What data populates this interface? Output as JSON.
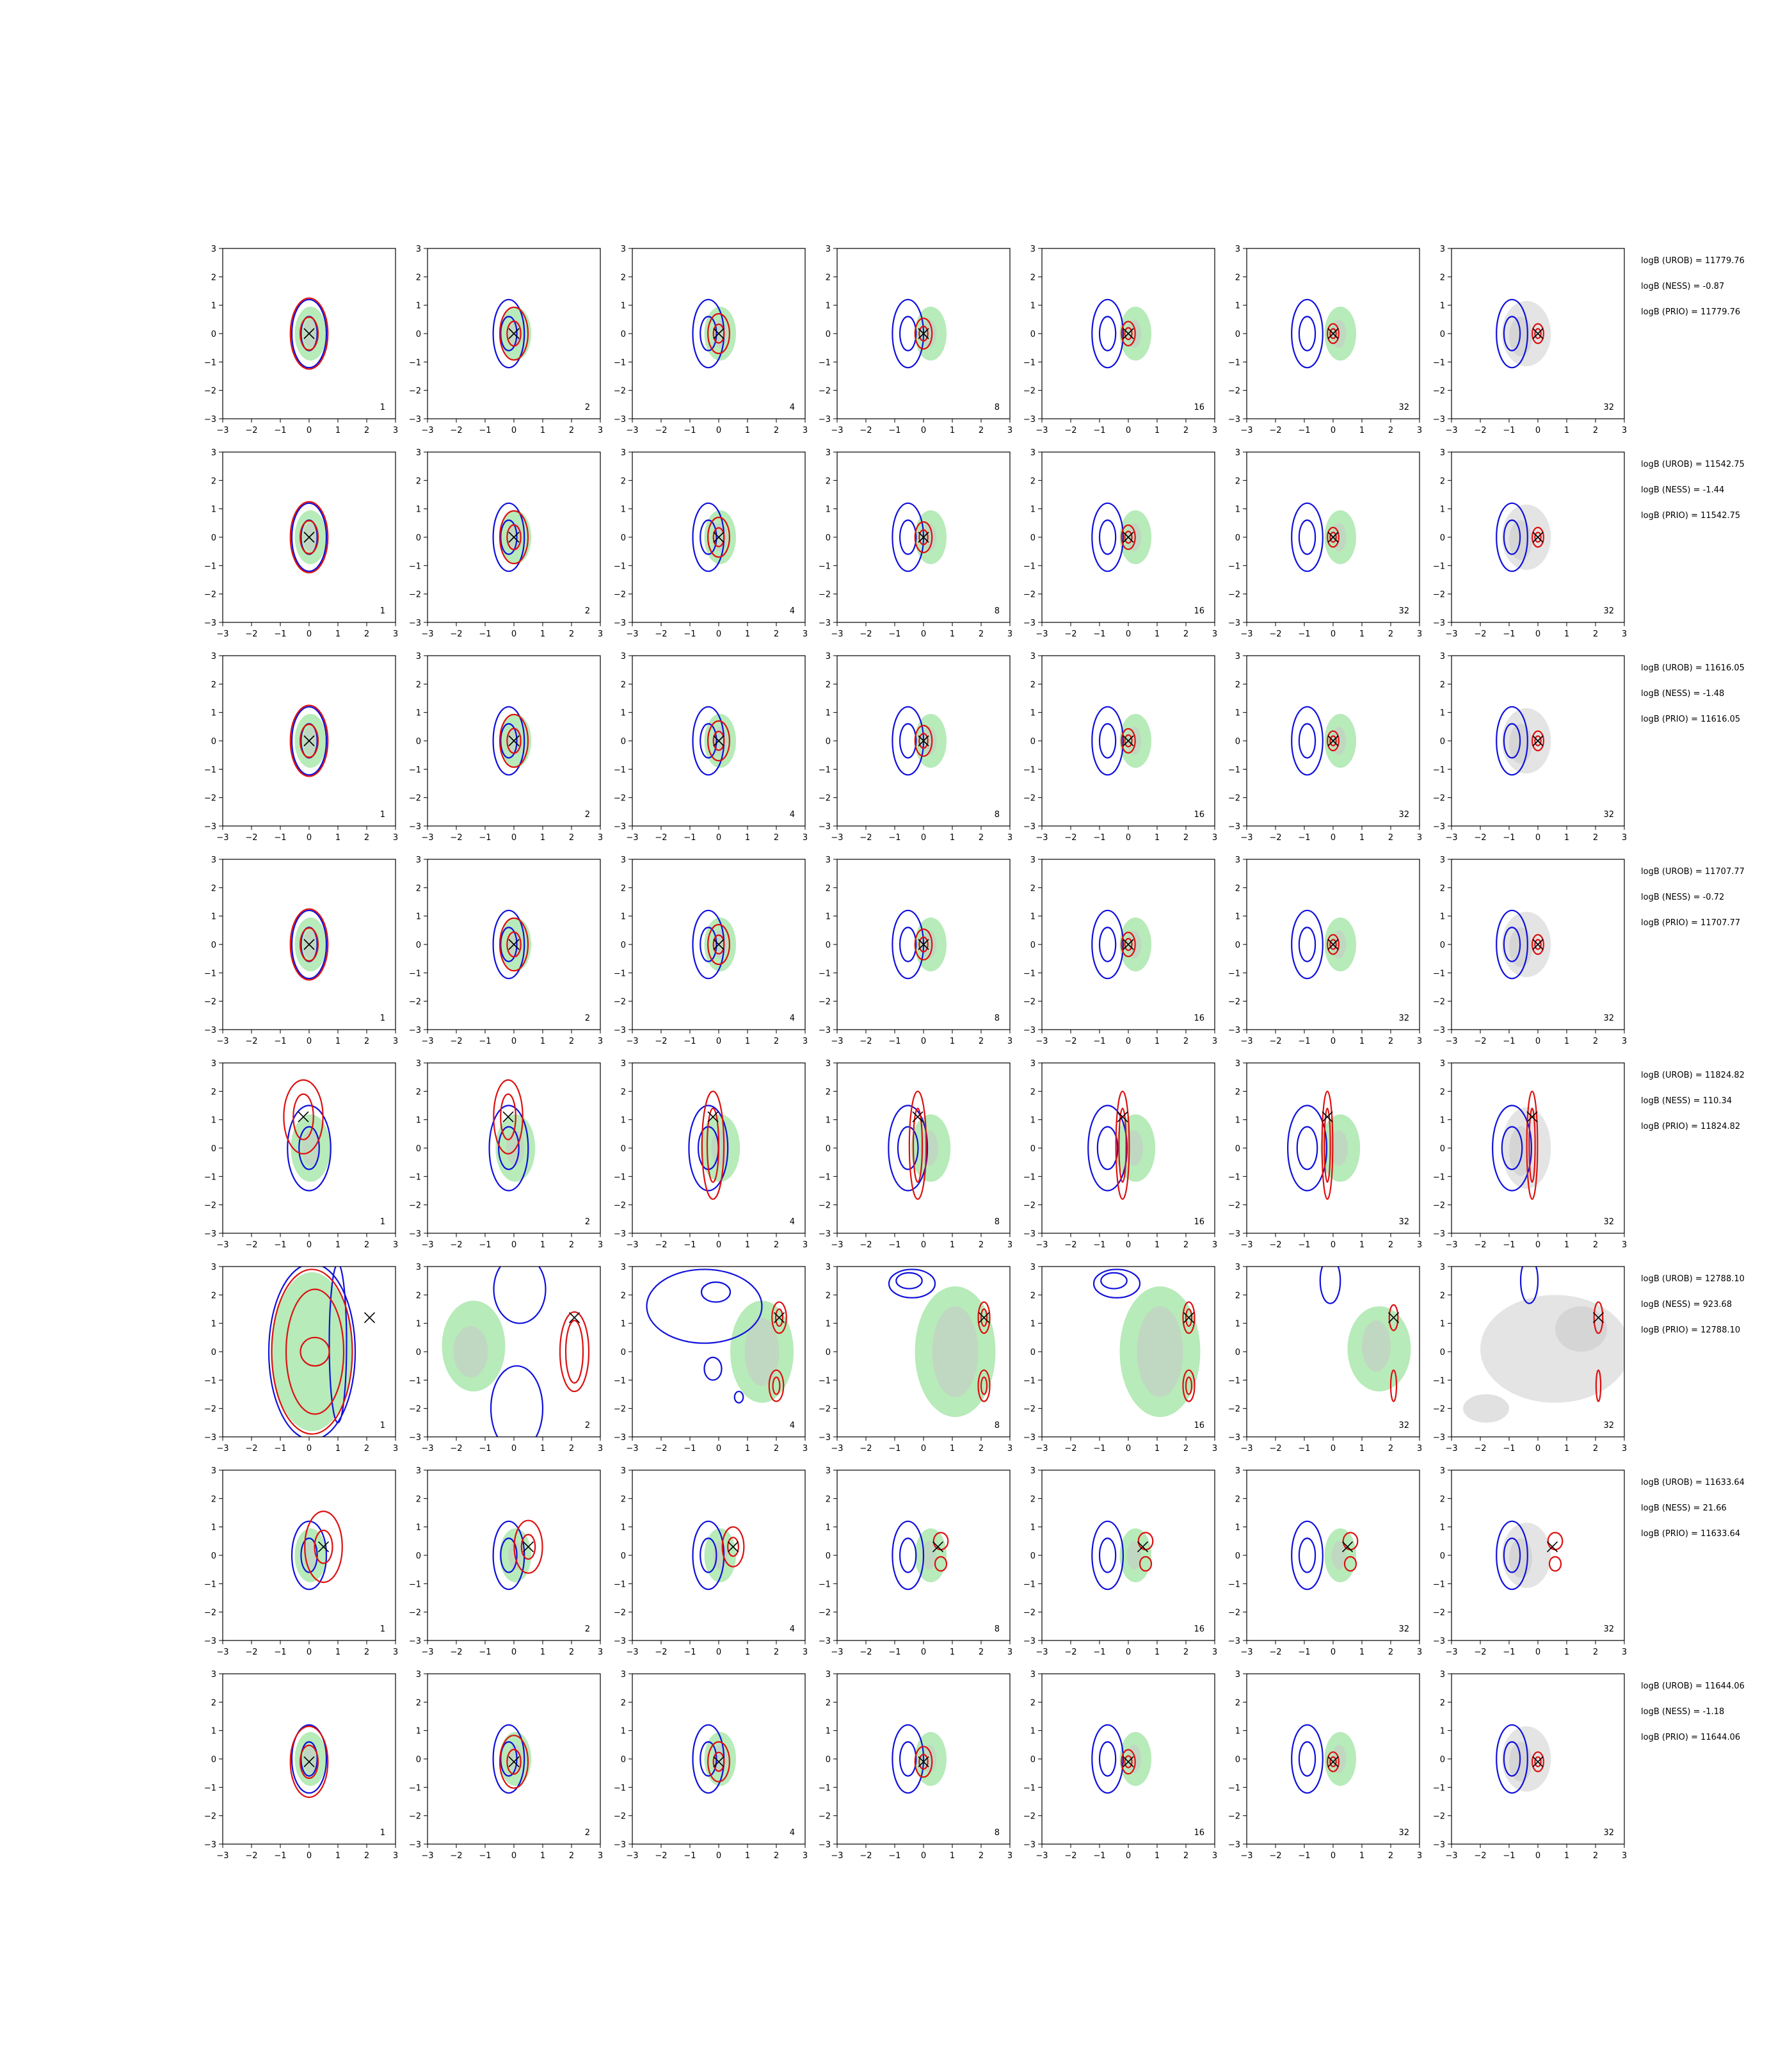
{
  "chart_data": {
    "type": "contour-grid",
    "rows": 8,
    "cols": 7,
    "xlim": [
      -3,
      3
    ],
    "ylim": [
      -3,
      3
    ],
    "ticks": [
      -3,
      -2,
      -1,
      0,
      1,
      2,
      3
    ],
    "column_labels": [
      "1",
      "2",
      "4",
      "8",
      "16",
      "32",
      "32"
    ],
    "colors": {
      "posterior_fill": "#b7ebb9",
      "posterior_fill_inner": "#c8c8c8",
      "prior_fill": "#e4e4e4",
      "contour_a": "#1010dd",
      "contour_b": "#dd1010",
      "marker": "#000000"
    },
    "row_annotations": [
      {
        "urob": "logB (UROB) = 11779.76",
        "ness": "logB (NESS) = -0.87",
        "prio": "logB (PRIO) = 11779.76"
      },
      {
        "urob": "logB (UROB) = 11542.75",
        "ness": "logB (NESS) = -1.44",
        "prio": "logB (PRIO) = 11542.75"
      },
      {
        "urob": "logB (UROB) = 11616.05",
        "ness": "logB (NESS) = -1.48",
        "prio": "logB (PRIO) = 11616.05"
      },
      {
        "urob": "logB (UROB) = 11707.77",
        "ness": "logB (NESS) = -0.72",
        "prio": "logB (PRIO) = 11707.77"
      },
      {
        "urob": "logB (UROB) = 11824.82",
        "ness": "logB (NESS) = 110.34",
        "prio": "logB (PRIO) = 11824.82"
      },
      {
        "urob": "logB (UROB) = 12788.10",
        "ness": "logB (NESS) = 923.68",
        "prio": "logB (PRIO) = 12788.10"
      },
      {
        "urob": "logB (UROB) = 11633.64",
        "ness": "logB (NESS) = 21.66",
        "prio": "logB (PRIO) = 11633.64"
      },
      {
        "urob": "logB (UROB) = 11644.06",
        "ness": "logB (NESS) = -1.18",
        "prio": "logB (PRIO) = 11644.06"
      }
    ],
    "markers": [
      [
        0.0,
        0.0
      ],
      [
        0.0,
        0.0
      ],
      [
        0.0,
        0.0
      ],
      [
        0.0,
        0.0
      ],
      [
        -0.2,
        1.1
      ],
      [
        2.1,
        1.2
      ],
      [
        0.5,
        0.3
      ],
      [
        0.0,
        -0.1
      ]
    ]
  }
}
